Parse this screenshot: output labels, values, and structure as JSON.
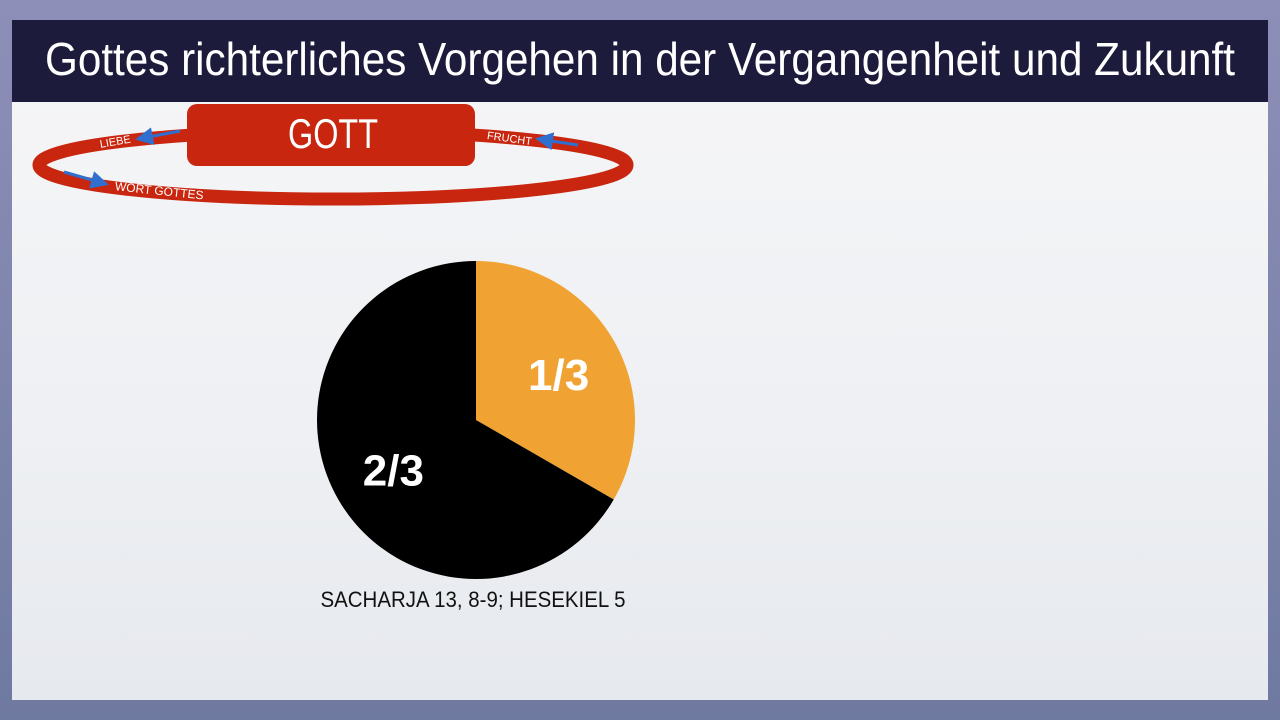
{
  "header": {
    "title": "Gottes richterliches Vorgehen in der Vergangenheit und Zukunft"
  },
  "ring": {
    "center": "GOTT",
    "left": "LIEBE",
    "right": "FRUCHT",
    "bottom": "WORT GOTTES"
  },
  "chart_data": {
    "type": "pie",
    "values": [
      0.3333,
      0.6667
    ],
    "value_labels": [
      "1/3",
      "2/3"
    ],
    "colors": [
      "#f0a232",
      "#000000"
    ],
    "caption": "SACHARJA 13, 8-9; HESEKIEL 5"
  }
}
